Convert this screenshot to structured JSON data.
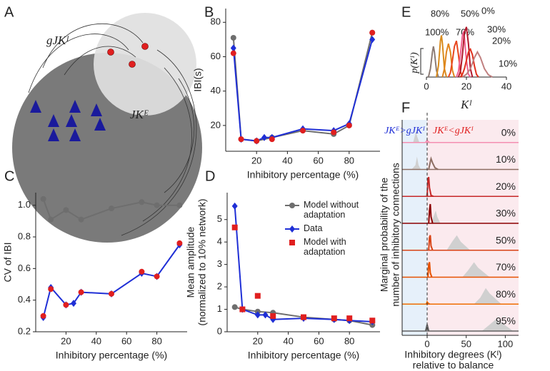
{
  "diagram": {
    "panel": "A",
    "labels": [
      "gJKᴵ",
      "JKᴱ"
    ]
  },
  "chart_data": [
    {
      "type": "xy",
      "panel": "B",
      "xlabel": "Inhibitory percentage (%)",
      "ylabel": "IBI(s)",
      "xlim": [
        0,
        100
      ],
      "xticks": [
        20,
        40,
        60,
        80
      ],
      "ylim": [
        5,
        88
      ],
      "yticks": [
        20,
        40,
        60,
        80
      ],
      "series": [
        {
          "name": "Model without adaptation",
          "color": "#6e6e6e",
          "marker": "circle",
          "line": true,
          "x": [
            5,
            10,
            20,
            30,
            50,
            70,
            80,
            95
          ],
          "values": [
            71,
            12,
            11,
            13,
            17,
            15,
            20,
            74
          ]
        },
        {
          "name": "Data",
          "color": "#1f2fd6",
          "marker": "diamond",
          "line": true,
          "x": [
            5,
            10,
            20,
            25,
            30,
            50,
            70,
            80,
            95
          ],
          "values": [
            65,
            12,
            11,
            13,
            13,
            18,
            17,
            21,
            70
          ]
        },
        {
          "name": "Model with adaptation",
          "color": "#e01f1f",
          "marker": "circle",
          "line": false,
          "x": [
            5,
            10,
            20,
            30,
            50,
            70,
            80,
            95
          ],
          "values": [
            62,
            12,
            11,
            12,
            17,
            16,
            20,
            74
          ]
        }
      ]
    },
    {
      "type": "xy",
      "panel": "C",
      "xlabel": "Inhibitory percentage (%)",
      "ylabel": "CV of IBI",
      "xlim": [
        0,
        100
      ],
      "xticks": [
        20,
        40,
        60,
        80
      ],
      "ylim": [
        0.2,
        1.08
      ],
      "yticks": [
        0.2,
        0.4,
        0.6,
        0.8,
        {
          "value": 1.0,
          "label": "1.0"
        }
      ],
      "series": [
        {
          "name": "Model without adaptation",
          "color": "#6e6e6e",
          "marker": "circle",
          "line": true,
          "x": [
            5,
            10,
            20,
            30,
            50,
            70,
            80,
            95
          ],
          "values": [
            1.04,
            0.91,
            0.97,
            0.91,
            0.98,
            1.02,
            1.0,
            1.0
          ]
        },
        {
          "name": "Data",
          "color": "#1f2fd6",
          "marker": "diamond",
          "line": true,
          "x": [
            5,
            10,
            20,
            25,
            30,
            50,
            70,
            80,
            95
          ],
          "values": [
            0.29,
            0.48,
            0.37,
            0.38,
            0.45,
            0.44,
            0.57,
            0.55,
            0.75
          ]
        },
        {
          "name": "Model with adaptation",
          "color": "#e01f1f",
          "marker": "circle",
          "line": false,
          "x": [
            5,
            10,
            20,
            30,
            50,
            70,
            80,
            95
          ],
          "values": [
            0.3,
            0.47,
            0.37,
            0.45,
            0.44,
            0.58,
            0.55,
            0.76
          ]
        }
      ]
    },
    {
      "type": "xy",
      "panel": "D",
      "xlabel": "Inhibitory percentage (%)",
      "ylabel": [
        "Mean amplitude",
        "(normalized to 10% network)"
      ],
      "xlim": [
        0,
        100
      ],
      "xticks": [
        20,
        40,
        60,
        80
      ],
      "ylim": [
        0,
        6.2
      ],
      "yticks": [
        0,
        1,
        2,
        3,
        4,
        5
      ],
      "legend": "upper right",
      "series": [
        {
          "name": "Model without adaptation",
          "color": "#6e6e6e",
          "marker": "circle",
          "line": true,
          "x": [
            5,
            10,
            20,
            30,
            50,
            70,
            80,
            95
          ],
          "values": [
            1.1,
            1.0,
            0.9,
            0.85,
            0.65,
            0.55,
            0.5,
            0.3
          ]
        },
        {
          "name": "Data",
          "color": "#1f2fd6",
          "marker": "diamond",
          "line": true,
          "x": [
            5,
            10,
            20,
            25,
            30,
            50,
            70,
            80,
            95
          ],
          "values": [
            5.6,
            1.0,
            0.75,
            0.75,
            0.55,
            0.6,
            0.55,
            0.5,
            0.45
          ]
        },
        {
          "name": "Model with adaptation",
          "color": "#e01f1f",
          "marker": "square",
          "line": false,
          "x": [
            5,
            10,
            20,
            30,
            50,
            70,
            80,
            95
          ],
          "values": [
            4.65,
            1.0,
            1.6,
            0.7,
            0.65,
            0.6,
            0.6,
            0.5
          ]
        }
      ]
    },
    {
      "type": "density",
      "panel": "E",
      "xlabel": "Kᴵ",
      "ylabel": "p(Kᴵ)",
      "xlim": [
        0,
        40
      ],
      "xticks": [
        0,
        20,
        40
      ],
      "ylim": [
        0,
        1
      ],
      "series": [
        {
          "name": "100%",
          "color": "#8c7b75",
          "x": [
            1,
            2,
            3,
            3.5,
            4,
            5,
            6
          ],
          "values": [
            0,
            0.15,
            0.45,
            0.55,
            0.45,
            0.12,
            0
          ]
        },
        {
          "name": "80%",
          "color": "#d98b1c",
          "x": [
            5,
            6,
            7,
            7.5,
            8,
            9,
            10
          ],
          "values": [
            0,
            0.2,
            0.65,
            0.75,
            0.6,
            0.15,
            0
          ]
        },
        {
          "name": "70%",
          "color": "#e0841a",
          "x": [
            8,
            9,
            10,
            11,
            12,
            13,
            14
          ],
          "values": [
            0,
            0.15,
            0.45,
            0.6,
            0.45,
            0.12,
            0
          ]
        },
        {
          "name": "50%",
          "color": "#e8471e",
          "x": [
            11,
            12,
            13,
            14,
            15,
            16,
            17,
            18
          ],
          "values": [
            0,
            0.08,
            0.3,
            0.55,
            0.65,
            0.4,
            0.1,
            0
          ]
        },
        {
          "name": "0%",
          "color": "#f06292",
          "x": [
            15,
            16,
            17,
            18,
            18.5,
            19,
            20,
            21,
            22
          ],
          "values": [
            0,
            0.1,
            0.4,
            0.75,
            0.8,
            0.7,
            0.3,
            0.05,
            0
          ]
        },
        {
          "name": "30%",
          "color": "#b2182b",
          "x": [
            16,
            17,
            18,
            19,
            20,
            21,
            22,
            23
          ],
          "values": [
            0,
            0.1,
            0.4,
            0.8,
            0.9,
            0.6,
            0.15,
            0
          ]
        },
        {
          "name": "20%",
          "color": "#e0301e",
          "x": [
            17,
            18,
            19,
            20,
            21,
            22,
            23,
            24,
            25,
            26
          ],
          "values": [
            0,
            0.05,
            0.15,
            0.3,
            0.45,
            0.5,
            0.4,
            0.2,
            0.05,
            0
          ]
        },
        {
          "name": "10%",
          "color": "#c08080",
          "x": [
            18,
            20,
            22,
            24,
            25.5,
            27,
            29,
            31,
            33
          ],
          "values": [
            0,
            0.05,
            0.15,
            0.35,
            0.45,
            0.35,
            0.15,
            0.04,
            0
          ]
        }
      ]
    },
    {
      "type": "ridgeline",
      "panel": "F",
      "xlabel": [
        "Inhibitory degrees (Kᴵ)",
        "relative to balance"
      ],
      "ylabel": [
        "Marginal probability of the",
        "number of inhibitory connections"
      ],
      "annotations": [
        "JKᴱ>gJKᴵ",
        "JKᴱ<gJKᴵ"
      ],
      "xlim": [
        -32,
        117
      ],
      "xticks": [
        0,
        50,
        100
      ],
      "series": [
        {
          "name": "0%",
          "color": "#f48fb1",
          "x": [
            -2,
            0,
            1,
            3
          ],
          "values": [
            0,
            0.1,
            0.05,
            0
          ]
        },
        {
          "name": "10%",
          "color": "#8d6e63",
          "x": [
            2,
            4,
            5,
            7,
            10,
            14
          ],
          "values": [
            0,
            0.35,
            0.5,
            0.3,
            0.08,
            0
          ]
        },
        {
          "name": "20%",
          "color": "#c62828",
          "x": [
            0,
            1,
            2,
            3,
            5,
            8
          ],
          "values": [
            0,
            0.8,
            0.9,
            0.4,
            0.05,
            0
          ]
        },
        {
          "name": "30%",
          "color": "#8b0000",
          "x": [
            2,
            3,
            4,
            5,
            7
          ],
          "values": [
            0,
            0.6,
            0.9,
            0.3,
            0
          ]
        },
        {
          "name": "50%",
          "color": "#d84315",
          "x": [
            2,
            3,
            4,
            5,
            7
          ],
          "values": [
            0,
            0.6,
            0.7,
            0.2,
            0
          ]
        },
        {
          "name": "70%",
          "color": "#e65100",
          "x": [
            1,
            2,
            3,
            4,
            6
          ],
          "values": [
            0,
            0.6,
            0.7,
            0.2,
            0
          ]
        },
        {
          "name": "80%",
          "color": "#ef6c00",
          "x": [
            -1,
            0,
            1,
            3
          ],
          "values": [
            0,
            0.1,
            0.05,
            0
          ]
        },
        {
          "name": "95%",
          "color": "#616161",
          "x": [
            -2,
            0,
            2
          ],
          "values": [
            0,
            0.3,
            0
          ]
        }
      ],
      "background_series": [
        {
          "color": "#d0d0d0",
          "x": [
            -18,
            -15,
            -14,
            -13,
            -10
          ],
          "values": [
            0,
            0.4,
            0.6,
            0.3,
            0
          ]
        },
        {
          "color": "#d0d0d0",
          "x": [
            -20,
            -15,
            -13,
            -11,
            -8
          ],
          "values": [
            0,
            0.2,
            0.6,
            0.2,
            0
          ]
        },
        {
          "color": "#d0d0d0",
          "x": [
            -3,
            0,
            3
          ],
          "values": [
            0,
            0.2,
            0
          ]
        },
        {
          "color": "#d0d0d0",
          "x": [
            5,
            9,
            11,
            13,
            17
          ],
          "values": [
            0,
            0.4,
            0.6,
            0.3,
            0
          ]
        },
        {
          "color": "#d0d0d0",
          "x": [
            25,
            32,
            38,
            43,
            55
          ],
          "values": [
            0,
            0.4,
            0.7,
            0.4,
            0
          ]
        },
        {
          "color": "#d0d0d0",
          "x": [
            45,
            52,
            60,
            65,
            80
          ],
          "values": [
            0,
            0.3,
            0.7,
            0.45,
            0
          ]
        },
        {
          "color": "#d0d0d0",
          "x": [
            60,
            68,
            75,
            80,
            95
          ],
          "values": [
            0,
            0.3,
            0.75,
            0.5,
            0
          ]
        },
        {
          "color": "#d0d0d0",
          "x": [
            70,
            80,
            88,
            95,
            110
          ],
          "values": [
            0,
            0.3,
            0.55,
            0.4,
            0
          ]
        }
      ]
    }
  ]
}
